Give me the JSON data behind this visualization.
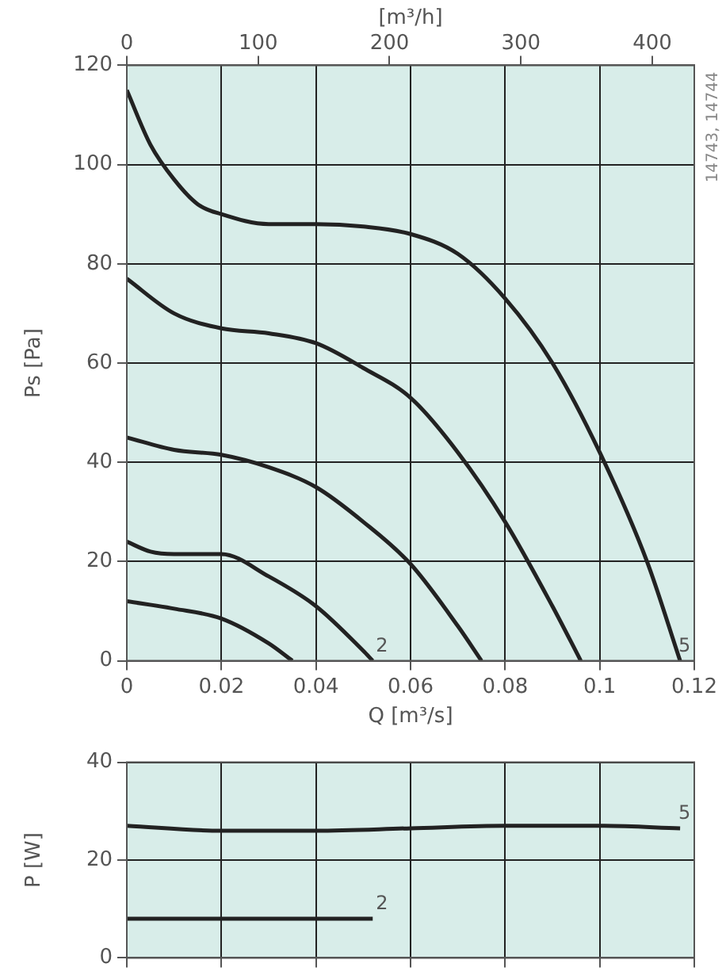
{
  "chart_data": [
    {
      "type": "line",
      "xlabel": "Q [m³/s]",
      "ylabel": "Ps [Pa]",
      "x2label": "[m³/h]",
      "xlim": [
        0,
        0.12
      ],
      "xticks": [
        0,
        0.02,
        0.04,
        0.06,
        0.08,
        0.1,
        0.12
      ],
      "x2lim": [
        0,
        432
      ],
      "x2ticks": [
        0,
        100,
        200,
        300,
        400
      ],
      "ylim": [
        0,
        120
      ],
      "yticks": [
        0,
        20,
        40,
        60,
        80,
        100,
        120
      ],
      "grid": true,
      "legend": false,
      "marker": "none",
      "line_style": "solid",
      "annotations": [
        "14743, 14744"
      ],
      "series": [
        {
          "color": "#222222",
          "x": [
            0,
            0.01,
            0.02,
            0.03,
            0.035
          ],
          "values": [
            12,
            10.5,
            8.5,
            3.5,
            0
          ]
        },
        {
          "name": "2",
          "color": "#222222",
          "x": [
            0,
            0.005,
            0.01,
            0.02,
            0.03,
            0.04,
            0.05,
            0.052
          ],
          "values": [
            24,
            22,
            21.5,
            21.5,
            17,
            11,
            2,
            0
          ]
        },
        {
          "color": "#222222",
          "x": [
            0,
            0.01,
            0.02,
            0.03,
            0.04,
            0.05,
            0.06,
            0.07,
            0.075
          ],
          "values": [
            45,
            42.5,
            41.5,
            39,
            35,
            28,
            19.5,
            7,
            0
          ]
        },
        {
          "color": "#222222",
          "x": [
            0,
            0.01,
            0.02,
            0.03,
            0.04,
            0.05,
            0.06,
            0.07,
            0.08,
            0.09,
            0.096
          ],
          "values": [
            77,
            70,
            67,
            66,
            64,
            59,
            53,
            42,
            28,
            11,
            0
          ]
        },
        {
          "name": "5",
          "color": "#222222",
          "x": [
            0,
            0.005,
            0.01,
            0.015,
            0.02,
            0.03,
            0.04,
            0.05,
            0.06,
            0.07,
            0.08,
            0.09,
            0.1,
            0.11,
            0.117
          ],
          "values": [
            115,
            104,
            97,
            92,
            90,
            88,
            88,
            87.5,
            86,
            82,
            73,
            60,
            42,
            20,
            0
          ]
        }
      ]
    },
    {
      "type": "line",
      "ylabel": "P [W]",
      "xlim": [
        0,
        0.12
      ],
      "xticks": [
        0,
        0.02,
        0.04,
        0.06,
        0.08,
        0.1,
        0.12
      ],
      "ylim": [
        0,
        40
      ],
      "yticks": [
        0,
        20,
        40
      ],
      "grid": true,
      "legend": false,
      "marker": "none",
      "line_style": "solid",
      "tick_labels": "y",
      "series": [
        {
          "name": "5",
          "color": "#222222",
          "x": [
            0,
            0.02,
            0.04,
            0.06,
            0.08,
            0.1,
            0.117
          ],
          "values": [
            27,
            26,
            26,
            26.5,
            27,
            27,
            26.5
          ]
        },
        {
          "name": "2",
          "color": "#222222",
          "x": [
            0,
            0.052
          ],
          "values": [
            8,
            8
          ]
        }
      ]
    }
  ]
}
